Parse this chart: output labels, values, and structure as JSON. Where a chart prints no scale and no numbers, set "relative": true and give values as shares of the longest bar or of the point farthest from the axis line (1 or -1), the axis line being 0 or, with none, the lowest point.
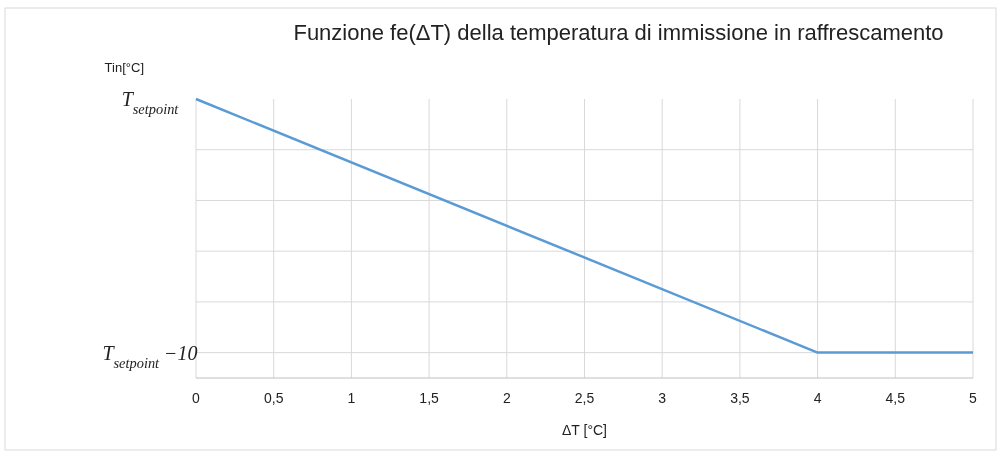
{
  "chart_data": {
    "type": "line",
    "title": "Funzione fe(ΔT) della temperatura di immissione in raffrescamento",
    "xlabel": "ΔT [°C]",
    "ylabel": "Tin[°C]",
    "x": [
      0,
      4,
      5
    ],
    "series": [
      {
        "color": "#5b9bd5",
        "values": [
          1,
          0.091,
          0.091
        ]
      }
    ],
    "relative": true,
    "xlim": [
      0,
      5
    ],
    "xticks": [
      0,
      {
        "value": 0.5,
        "label": "0,5"
      },
      1,
      {
        "value": 1.5,
        "label": "1,5"
      },
      2,
      {
        "value": 2.5,
        "label": "2,5"
      },
      3,
      {
        "value": 3.5,
        "label": "3,5"
      },
      4,
      {
        "value": 4.5,
        "label": "4,5"
      },
      5
    ],
    "annotations": [
      "T$_{setpoint}$",
      "T$_{setpoint}$ −10"
    ],
    "grid": true,
    "marker": "none",
    "line_style": "solid"
  }
}
